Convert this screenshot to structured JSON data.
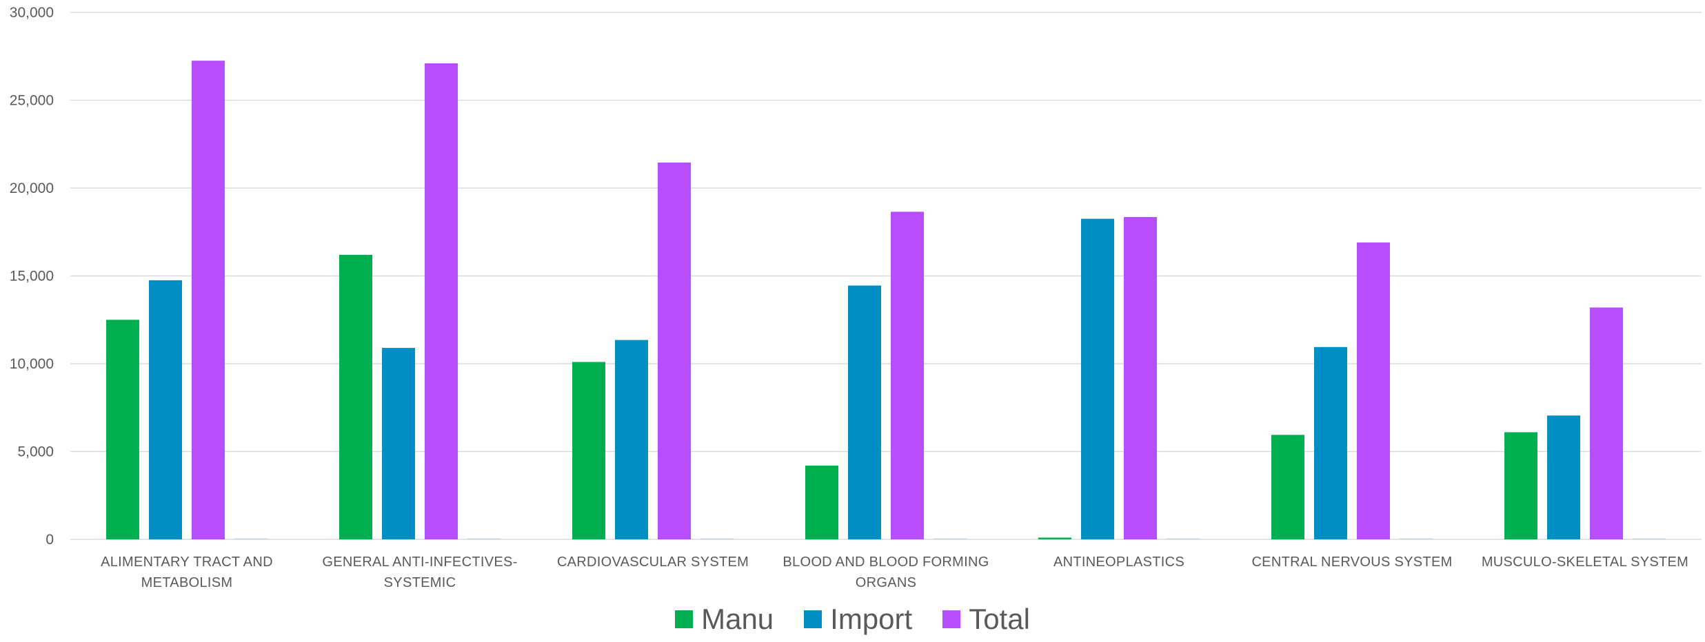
{
  "chart_data": {
    "type": "bar",
    "title": "",
    "xlabel": "",
    "ylabel": "",
    "ylim": [
      0,
      30000
    ],
    "yticks": [
      0,
      5000,
      10000,
      15000,
      20000,
      25000,
      30000
    ],
    "ytick_labels": [
      "0",
      "5,000",
      "10,000",
      "15,000",
      "20,000",
      "25,000",
      "30,000"
    ],
    "grid": true,
    "legend_position": "bottom",
    "categories": [
      [
        "ALIMENTARY TRACT AND",
        "METABOLISM"
      ],
      [
        "GENERAL ANTI-INFECTIVES-",
        "SYSTEMIC"
      ],
      [
        "CARDIOVASCULAR SYSTEM"
      ],
      [
        "BLOOD AND BLOOD FORMING",
        "ORGANS"
      ],
      [
        "ANTINEOPLASTICS"
      ],
      [
        "CENTRAL NERVOUS SYSTEM"
      ],
      [
        "MUSCULO-SKELETAL SYSTEM"
      ]
    ],
    "series": [
      {
        "name": "Manu",
        "color": "#00b050",
        "values": [
          12500,
          16200,
          10100,
          4200,
          100,
          5950,
          6100
        ]
      },
      {
        "name": "Import",
        "color": "#008fc4",
        "values": [
          14750,
          10900,
          11350,
          14450,
          18250,
          10950,
          7050
        ]
      },
      {
        "name": "Total",
        "color": "#b84dff",
        "values": [
          27250,
          27100,
          21450,
          18650,
          18350,
          16900,
          13200
        ]
      },
      {
        "name": "",
        "color": "#c8d8e8",
        "values": [
          0,
          0,
          0,
          0,
          0,
          0,
          0
        ]
      }
    ]
  },
  "legend": [
    {
      "label": "Manu",
      "color": "#00b050"
    },
    {
      "label": "Import",
      "color": "#008fc4"
    },
    {
      "label": "Total",
      "color": "#b84dff"
    }
  ]
}
